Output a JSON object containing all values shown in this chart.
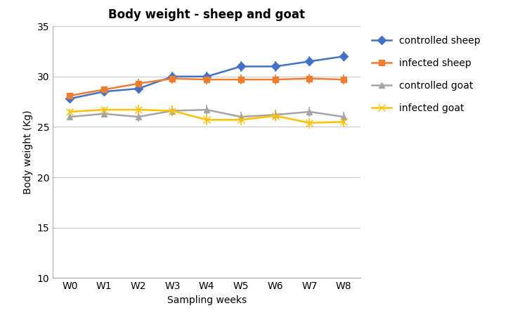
{
  "title": "Body weight - sheep and goat",
  "xlabel": "Sampling weeks",
  "ylabel": "Body weight (Kg)",
  "weeks": [
    "W0",
    "W1",
    "W2",
    "W3",
    "W4",
    "W5",
    "W6",
    "W7",
    "W8"
  ],
  "series": [
    {
      "name": "controlled sheep",
      "values": [
        27.8,
        28.5,
        28.8,
        30.0,
        30.0,
        31.0,
        31.0,
        31.5,
        32.0
      ],
      "errors": [
        0.3,
        0.3,
        0.5,
        0.5,
        0.5,
        0.5,
        0.5,
        0.5,
        0.5
      ],
      "color": "#4472C4",
      "marker": "D",
      "markersize": 6,
      "linewidth": 1.8
    },
    {
      "name": "infected sheep",
      "values": [
        28.1,
        28.7,
        29.3,
        29.8,
        29.7,
        29.7,
        29.7,
        29.8,
        29.7
      ],
      "errors": [
        0.3,
        0.3,
        0.5,
        0.5,
        0.5,
        0.5,
        0.5,
        0.5,
        0.5
      ],
      "color": "#ED7D31",
      "marker": "s",
      "markersize": 6,
      "linewidth": 1.8
    },
    {
      "name": "controlled goat",
      "values": [
        26.0,
        26.3,
        26.0,
        26.6,
        26.7,
        26.0,
        26.2,
        26.5,
        26.0
      ],
      "errors": [
        0.3,
        0.3,
        0.5,
        0.5,
        0.5,
        0.5,
        0.5,
        0.5,
        0.5
      ],
      "color": "#A5A5A5",
      "marker": "^",
      "markersize": 6,
      "linewidth": 1.8
    },
    {
      "name": "infected goat",
      "values": [
        26.5,
        26.7,
        26.7,
        26.6,
        25.7,
        25.7,
        26.1,
        25.4,
        25.5
      ],
      "errors": [
        0.3,
        0.3,
        0.5,
        0.5,
        0.5,
        0.5,
        0.5,
        0.5,
        0.5
      ],
      "color": "#FFC000",
      "marker": "x",
      "markersize": 7,
      "linewidth": 1.8
    }
  ],
  "ylim": [
    10,
    35
  ],
  "yticks": [
    10,
    15,
    20,
    25,
    30,
    35
  ],
  "grid_color": "#C8C8C8",
  "background_color": "#FFFFFF",
  "title_fontsize": 12,
  "axis_label_fontsize": 10,
  "tick_fontsize": 10,
  "legend_fontsize": 10
}
